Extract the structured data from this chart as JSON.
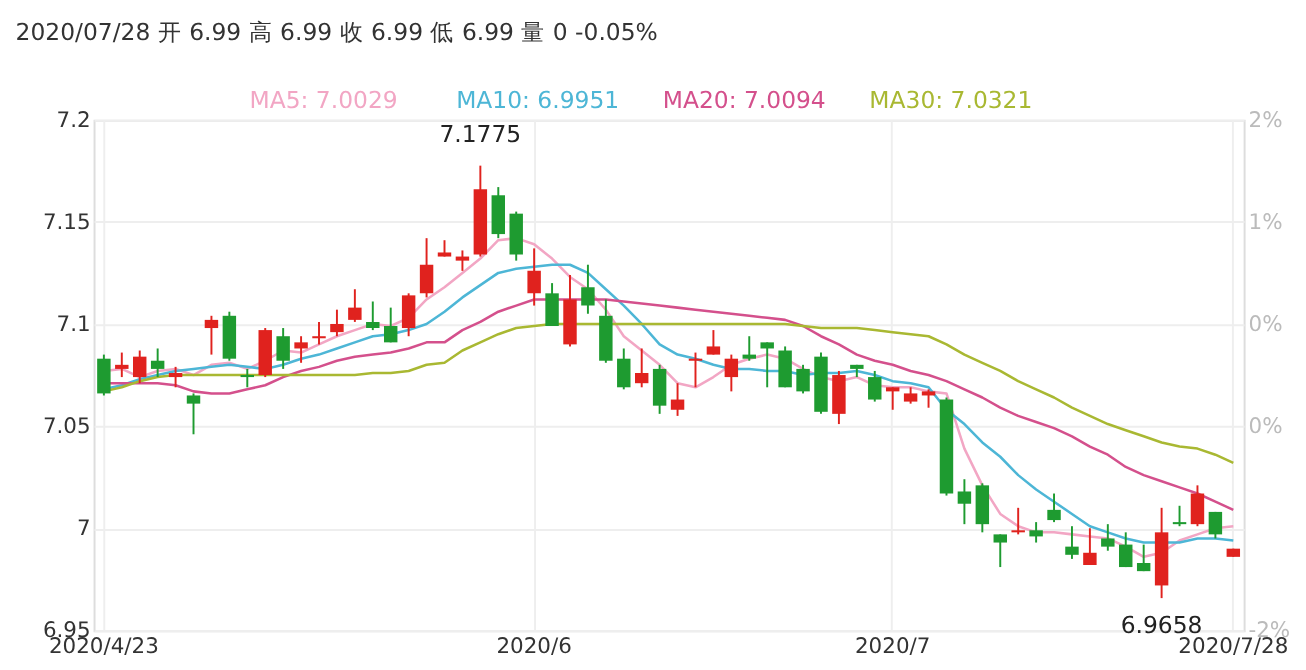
{
  "chart_data": {
    "type": "candlestick",
    "title": "2020/07/28 开 6.99 高 6.99 收 6.99 低 6.99 量 0 -0.05%",
    "categories": [
      "2020/4/23",
      null,
      null,
      null,
      null,
      null,
      null,
      null,
      null,
      null,
      null,
      null,
      null,
      null,
      null,
      null,
      null,
      null,
      null,
      null,
      null,
      null,
      null,
      null,
      "2020/6",
      null,
      null,
      null,
      null,
      null,
      null,
      null,
      null,
      null,
      null,
      null,
      null,
      null,
      null,
      null,
      null,
      null,
      null,
      null,
      "2020/7",
      null,
      null,
      null,
      null,
      null,
      null,
      null,
      null,
      null,
      null,
      null,
      null,
      null,
      null,
      null,
      null,
      null,
      null,
      "2020/7/28"
    ],
    "ohlc": [
      [
        7.083,
        7.085,
        7.065,
        7.066
      ],
      [
        7.078,
        7.086,
        7.074,
        7.08
      ],
      [
        7.074,
        7.087,
        7.071,
        7.084
      ],
      [
        7.082,
        7.088,
        7.074,
        7.078
      ],
      [
        7.074,
        7.079,
        7.069,
        7.076
      ],
      [
        7.065,
        7.066,
        7.046,
        7.061
      ],
      [
        7.098,
        7.104,
        7.085,
        7.102
      ],
      [
        7.104,
        7.106,
        7.082,
        7.083
      ],
      [
        7.075,
        7.078,
        7.069,
        7.074
      ],
      [
        7.075,
        7.098,
        7.074,
        7.097
      ],
      [
        7.094,
        7.098,
        7.078,
        7.082
      ],
      [
        7.088,
        7.094,
        7.081,
        7.091
      ],
      [
        7.093,
        7.101,
        7.09,
        7.094
      ],
      [
        7.096,
        7.107,
        7.094,
        7.1
      ],
      [
        7.102,
        7.117,
        7.101,
        7.108
      ],
      [
        7.101,
        7.111,
        7.097,
        7.098
      ],
      [
        7.099,
        7.108,
        7.091,
        7.091
      ],
      [
        7.098,
        7.115,
        7.094,
        7.114
      ],
      [
        7.115,
        7.142,
        7.113,
        7.129
      ],
      [
        7.133,
        7.141,
        7.133,
        7.135
      ],
      [
        7.131,
        7.136,
        7.126,
        7.133
      ],
      [
        7.134,
        7.1775,
        7.133,
        7.166
      ],
      [
        7.163,
        7.167,
        7.142,
        7.144
      ],
      [
        7.154,
        7.155,
        7.131,
        7.134
      ],
      [
        7.115,
        7.137,
        7.109,
        7.126
      ],
      [
        7.115,
        7.12,
        7.099,
        7.099
      ],
      [
        7.09,
        7.124,
        7.089,
        7.112
      ],
      [
        7.118,
        7.129,
        7.105,
        7.109
      ],
      [
        7.104,
        7.112,
        7.081,
        7.082
      ],
      [
        7.083,
        7.088,
        7.068,
        7.069
      ],
      [
        7.071,
        7.088,
        7.069,
        7.076
      ],
      [
        7.078,
        7.08,
        7.056,
        7.06
      ],
      [
        7.058,
        7.071,
        7.055,
        7.063
      ],
      [
        7.082,
        7.086,
        7.069,
        7.083
      ],
      [
        7.085,
        7.097,
        7.085,
        7.089
      ],
      [
        7.074,
        7.085,
        7.067,
        7.083
      ],
      [
        7.085,
        7.094,
        7.082,
        7.083
      ],
      [
        7.091,
        7.091,
        7.069,
        7.088
      ],
      [
        7.087,
        7.089,
        7.069,
        7.069
      ],
      [
        7.078,
        7.08,
        7.066,
        7.067
      ],
      [
        7.084,
        7.086,
        7.056,
        7.057
      ],
      [
        7.056,
        7.077,
        7.051,
        7.075
      ],
      [
        7.08,
        7.08,
        7.074,
        7.078
      ],
      [
        7.074,
        7.077,
        7.062,
        7.063
      ],
      [
        7.067,
        7.069,
        7.058,
        7.069
      ],
      [
        7.062,
        7.069,
        7.061,
        7.066
      ],
      [
        7.065,
        7.068,
        7.059,
        7.067
      ],
      [
        7.063,
        7.064,
        7.016,
        7.017
      ],
      [
        7.018,
        7.024,
        7.002,
        7.012
      ],
      [
        7.021,
        7.022,
        6.998,
        7.002
      ],
      [
        6.997,
        6.997,
        6.981,
        6.993
      ],
      [
        6.998,
        7.01,
        6.997,
        6.999
      ],
      [
        6.999,
        7.003,
        6.993,
        6.996
      ],
      [
        7.009,
        7.017,
        7.003,
        7.004
      ],
      [
        6.991,
        7.001,
        6.985,
        6.987
      ],
      [
        6.982,
        7.0,
        6.982,
        6.988
      ],
      [
        6.995,
        7.002,
        6.989,
        6.991
      ],
      [
        6.992,
        6.998,
        6.981,
        6.981
      ],
      [
        6.983,
        6.992,
        6.979,
        6.979
      ],
      [
        6.972,
        7.01,
        6.9658,
        6.998
      ],
      [
        7.003,
        7.011,
        7.001,
        7.002
      ],
      [
        7.002,
        7.021,
        7.001,
        7.017
      ],
      [
        7.008,
        7.008,
        6.995,
        6.997
      ],
      [
        6.986,
        6.99,
        6.986,
        6.99
      ]
    ],
    "colors": [
      "#1e9b30",
      "#e0221e",
      "#e0221e",
      "#1e9b30",
      "#e0221e",
      "#1e9b30",
      "#e0221e",
      "#1e9b30",
      "#1e9b30",
      "#e0221e",
      "#1e9b30",
      "#e0221e",
      "#e0221e",
      "#e0221e",
      "#e0221e",
      "#1e9b30",
      "#1e9b30",
      "#e0221e",
      "#e0221e",
      "#e0221e",
      "#e0221e",
      "#e0221e",
      "#1e9b30",
      "#1e9b30",
      "#e0221e",
      "#1e9b30",
      "#e0221e",
      "#1e9b30",
      "#1e9b30",
      "#1e9b30",
      "#e0221e",
      "#1e9b30",
      "#e0221e",
      "#e0221e",
      "#e0221e",
      "#e0221e",
      "#1e9b30",
      "#1e9b30",
      "#1e9b30",
      "#1e9b30",
      "#1e9b30",
      "#e0221e",
      "#1e9b30",
      "#1e9b30",
      "#e0221e",
      "#e0221e",
      "#e0221e",
      "#1e9b30",
      "#1e9b30",
      "#1e9b30",
      "#1e9b30",
      "#e0221e",
      "#1e9b30",
      "#1e9b30",
      "#1e9b30",
      "#e0221e",
      "#1e9b30",
      "#1e9b30",
      "#1e9b30",
      "#e0221e",
      "#1e9b30",
      "#e0221e",
      "#1e9b30",
      "#e0221e"
    ],
    "series": [
      {
        "name": "MA5: 7.0029",
        "type": "line",
        "color": "#f2a6c4",
        "values": [
          7.077,
          7.078,
          7.074,
          7.077,
          7.078,
          7.075,
          7.08,
          7.081,
          7.078,
          7.082,
          7.087,
          7.086,
          7.09,
          7.094,
          7.097,
          7.1,
          7.099,
          7.103,
          7.112,
          7.118,
          7.125,
          7.132,
          7.141,
          7.142,
          7.139,
          7.132,
          7.123,
          7.117,
          7.107,
          7.094,
          7.087,
          7.08,
          7.071,
          7.069,
          7.074,
          7.08,
          7.083,
          7.085,
          7.083,
          7.078,
          7.074,
          7.072,
          7.074,
          7.07,
          7.069,
          7.069,
          7.067,
          7.066,
          7.039,
          7.021,
          7.007,
          7.001,
          6.998,
          6.998,
          6.997,
          6.996,
          6.995,
          6.991,
          6.986,
          6.988,
          6.994,
          6.997,
          7.0,
          7.001
        ]
      },
      {
        "name": "MA10: 6.9951",
        "type": "line",
        "color": "#4db6d6",
        "values": [
          7.068,
          7.07,
          7.073,
          7.075,
          7.077,
          7.078,
          7.079,
          7.08,
          7.079,
          7.078,
          7.08,
          7.083,
          7.085,
          7.088,
          7.091,
          7.094,
          7.095,
          7.097,
          7.1,
          7.106,
          7.113,
          7.119,
          7.125,
          7.127,
          7.128,
          7.129,
          7.129,
          7.125,
          7.117,
          7.109,
          7.1,
          7.09,
          7.085,
          7.083,
          7.08,
          7.078,
          7.078,
          7.077,
          7.077,
          7.075,
          7.076,
          7.076,
          7.077,
          7.075,
          7.072,
          7.071,
          7.069,
          7.058,
          7.051,
          7.042,
          7.035,
          7.026,
          7.019,
          7.013,
          7.007,
          7.001,
          6.998,
          6.995,
          6.993,
          6.993,
          6.993,
          6.995,
          6.995,
          6.994
        ]
      },
      {
        "name": "MA20: 7.0094",
        "type": "line",
        "color": "#d4508c",
        "values": [
          7.071,
          7.071,
          7.071,
          7.071,
          7.07,
          7.067,
          7.066,
          7.066,
          7.068,
          7.07,
          7.074,
          7.077,
          7.079,
          7.082,
          7.084,
          7.085,
          7.086,
          7.088,
          7.091,
          7.091,
          7.097,
          7.101,
          7.106,
          7.109,
          7.112,
          7.112,
          7.112,
          7.112,
          7.112,
          7.111,
          7.11,
          7.109,
          7.108,
          7.107,
          7.106,
          7.105,
          7.104,
          7.103,
          7.102,
          7.099,
          7.094,
          7.09,
          7.085,
          7.082,
          7.08,
          7.077,
          7.075,
          7.072,
          7.068,
          7.064,
          7.059,
          7.055,
          7.052,
          7.049,
          7.045,
          7.04,
          7.036,
          7.03,
          7.026,
          7.023,
          7.02,
          7.017,
          7.013,
          7.009
        ]
      },
      {
        "name": "MA30: 7.0321",
        "type": "line",
        "color": "#a9b832",
        "values": [
          7.067,
          7.069,
          7.072,
          7.074,
          7.075,
          7.075,
          7.075,
          7.075,
          7.075,
          7.075,
          7.075,
          7.075,
          7.075,
          7.075,
          7.075,
          7.076,
          7.076,
          7.077,
          7.08,
          7.081,
          7.087,
          7.091,
          7.095,
          7.098,
          7.099,
          7.1,
          7.1,
          7.1,
          7.1,
          7.1,
          7.1,
          7.1,
          7.1,
          7.1,
          7.1,
          7.1,
          7.1,
          7.1,
          7.1,
          7.099,
          7.098,
          7.098,
          7.098,
          7.097,
          7.096,
          7.095,
          7.094,
          7.09,
          7.085,
          7.081,
          7.077,
          7.072,
          7.068,
          7.064,
          7.059,
          7.055,
          7.051,
          7.048,
          7.045,
          7.042,
          7.04,
          7.039,
          7.036,
          7.032
        ]
      }
    ],
    "ylim": [
      6.95,
      7.2
    ],
    "yticks": [
      6.95,
      7,
      7.05,
      7.1,
      7.15,
      7.2
    ],
    "y2lim": [
      -2,
      2
    ],
    "y2ticks": [
      {
        "value": -2,
        "label": "-2%"
      },
      {
        "value": -0.4,
        "label": "0%"
      },
      {
        "value": 0.4,
        "label": "0%"
      },
      {
        "value": 1.2,
        "label": "1%"
      },
      {
        "value": 2,
        "label": "2%"
      }
    ],
    "annotations": [
      {
        "text": "7.1775",
        "y": 7.1775
      },
      {
        "text": "6.9658",
        "y": 6.9658
      }
    ],
    "grid": true,
    "legend": "top",
    "line_style": "solid"
  }
}
